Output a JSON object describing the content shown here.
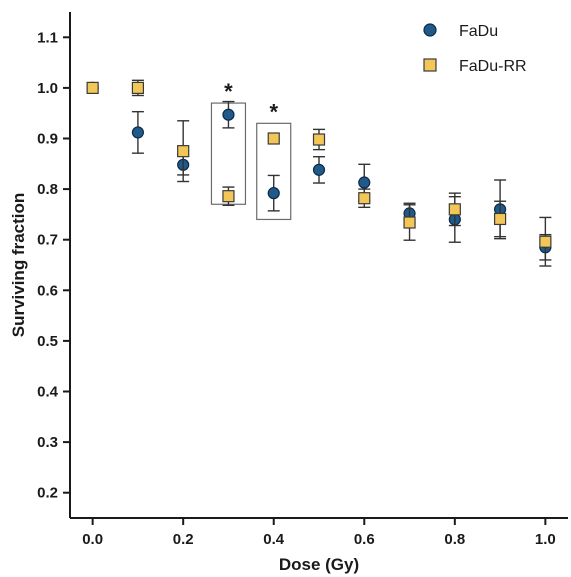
{
  "chart_data": {
    "type": "scatter",
    "xlabel": "Dose (Gy)",
    "ylabel": "Surviving fraction",
    "xlim": [
      -0.05,
      1.05
    ],
    "ylim": [
      0.15,
      1.15
    ],
    "x_ticks": [
      "0.0",
      "0.2",
      "0.4",
      "0.6",
      "0.8",
      "1.0"
    ],
    "y_ticks": [
      "0.2",
      "0.3",
      "0.4",
      "0.5",
      "0.6",
      "0.7",
      "0.8",
      "0.9",
      "1.0",
      "1.1"
    ],
    "legend_position": "top-right",
    "series": [
      {
        "name": "FaDu",
        "marker": "circle",
        "color": "#1f5a8a",
        "points": [
          {
            "x": 0.0,
            "y": 1.0,
            "err": 0.0
          },
          {
            "x": 0.1,
            "y": 0.912,
            "err": 0.041
          },
          {
            "x": 0.2,
            "y": 0.848,
            "err": 0.02
          },
          {
            "x": 0.3,
            "y": 0.947,
            "err": 0.026
          },
          {
            "x": 0.4,
            "y": 0.792,
            "err": 0.035
          },
          {
            "x": 0.5,
            "y": 0.838,
            "err": 0.026
          },
          {
            "x": 0.6,
            "y": 0.813,
            "err": 0.036
          },
          {
            "x": 0.7,
            "y": 0.752,
            "err": 0.02
          },
          {
            "x": 0.8,
            "y": 0.74,
            "err": 0.045
          },
          {
            "x": 0.9,
            "y": 0.76,
            "err": 0.058
          },
          {
            "x": 1.0,
            "y": 0.685,
            "err": 0.025
          }
        ]
      },
      {
        "name": "FaDu-RR",
        "marker": "square",
        "color": "#f2c757",
        "points": [
          {
            "x": 0.0,
            "y": 1.0,
            "err": 0.0
          },
          {
            "x": 0.1,
            "y": 1.0,
            "err": 0.015
          },
          {
            "x": 0.2,
            "y": 0.875,
            "err": 0.06
          },
          {
            "x": 0.3,
            "y": 0.786,
            "err": 0.018
          },
          {
            "x": 0.4,
            "y": 0.9,
            "err": 0.0
          },
          {
            "x": 0.5,
            "y": 0.898,
            "err": 0.02
          },
          {
            "x": 0.6,
            "y": 0.782,
            "err": 0.018
          },
          {
            "x": 0.7,
            "y": 0.734,
            "err": 0.035
          },
          {
            "x": 0.8,
            "y": 0.76,
            "err": 0.032
          },
          {
            "x": 0.9,
            "y": 0.741,
            "err": 0.035
          },
          {
            "x": 1.0,
            "y": 0.696,
            "err": 0.048
          }
        ]
      }
    ],
    "annotations": [
      {
        "text": "*",
        "x": 0.3,
        "y_range": [
          0.77,
          0.97
        ]
      },
      {
        "text": "*",
        "x": 0.4,
        "y_range": [
          0.74,
          0.93
        ]
      }
    ]
  }
}
